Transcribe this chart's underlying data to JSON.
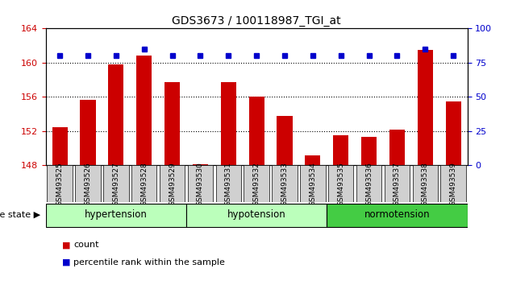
{
  "title": "GDS3673 / 100118987_TGI_at",
  "samples": [
    "GSM493525",
    "GSM493526",
    "GSM493527",
    "GSM493528",
    "GSM493529",
    "GSM493530",
    "GSM493531",
    "GSM493532",
    "GSM493533",
    "GSM493534",
    "GSM493535",
    "GSM493536",
    "GSM493537",
    "GSM493538",
    "GSM493539"
  ],
  "bar_values": [
    152.5,
    155.7,
    159.8,
    160.8,
    157.7,
    148.1,
    157.7,
    156.0,
    153.8,
    149.2,
    151.5,
    151.3,
    152.2,
    161.5,
    155.5
  ],
  "percentile_values": [
    80,
    80,
    80,
    85,
    80,
    80,
    80,
    80,
    80,
    80,
    80,
    80,
    80,
    85,
    80
  ],
  "ylim_left": [
    148,
    164
  ],
  "ylim_right": [
    0,
    100
  ],
  "yticks_left": [
    148,
    152,
    156,
    160,
    164
  ],
  "yticks_right": [
    0,
    25,
    50,
    75,
    100
  ],
  "bar_color": "#cc0000",
  "dot_color": "#0000cc",
  "tick_color_left": "#cc0000",
  "tick_color_right": "#0000cc",
  "grid_yticks": [
    152,
    156,
    160
  ],
  "group_labels": [
    "hypertension",
    "hypotension",
    "normotension"
  ],
  "group_boundaries": [
    0,
    5,
    10,
    15
  ],
  "group_colors": [
    "#bbffbb",
    "#bbffbb",
    "#44cc44"
  ],
  "bar_width": 0.55,
  "xlim": [
    -0.5,
    14.5
  ]
}
